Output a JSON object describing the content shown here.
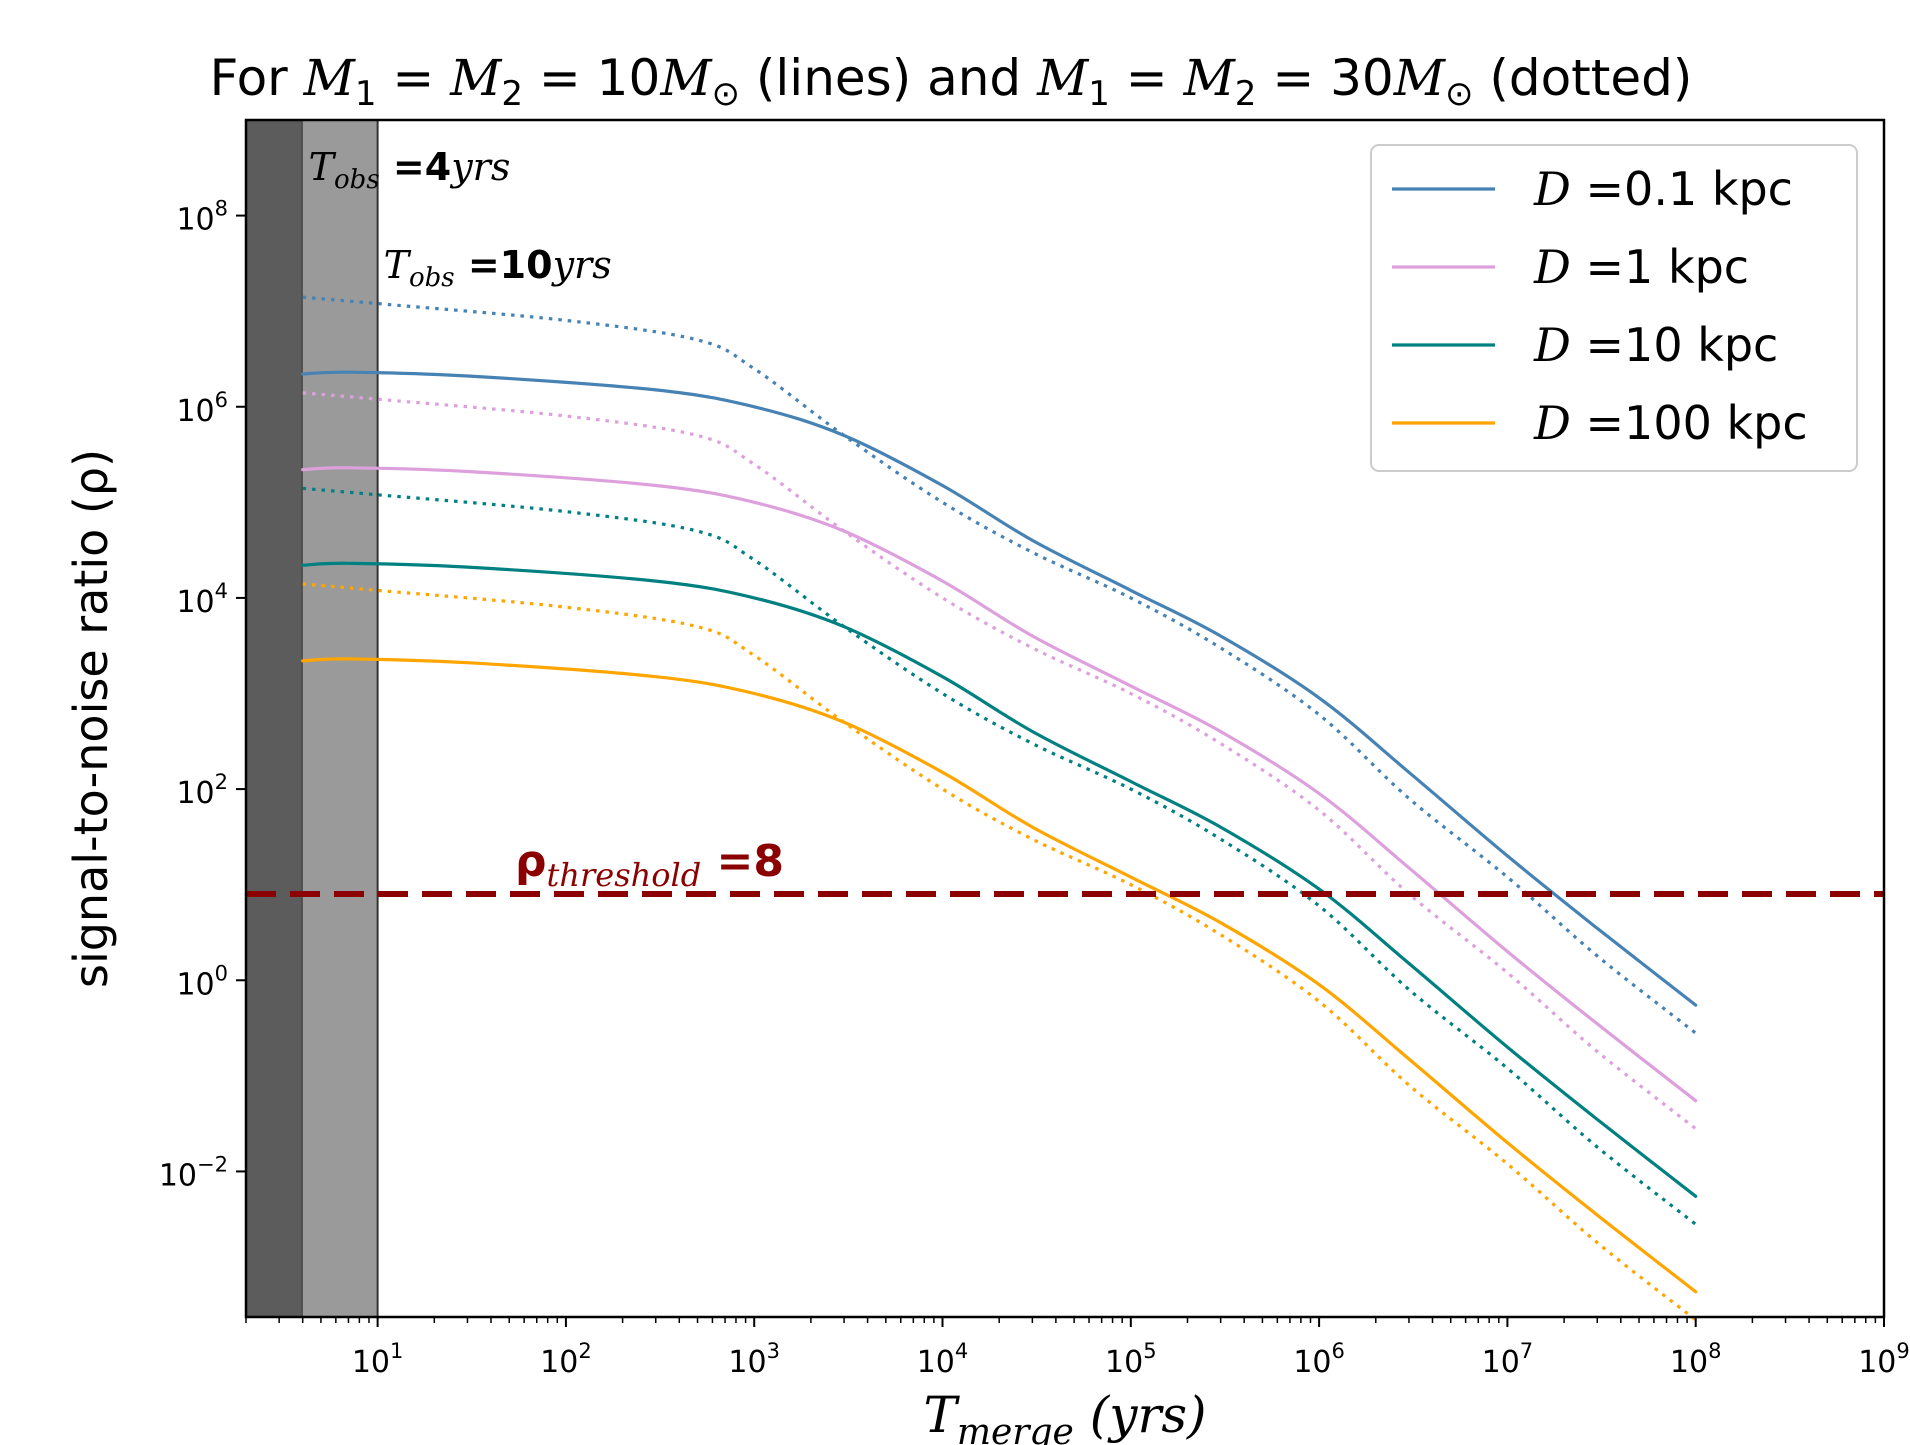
{
  "chart_data": {
    "type": "line",
    "title": {
      "pre": "For ",
      "m1": "M",
      "s1": "1",
      "eq1": " = ",
      "m2": "M",
      "s2": "2",
      "eq2": " = 10",
      "m3": "M",
      "sun1": "⊙",
      "mid": " (lines) and ",
      "m4": "M",
      "s4": "1",
      "eq3": " = ",
      "m5": "M",
      "s5": "2",
      "eq4": " = 30",
      "m6": "M",
      "sun2": "⊙",
      "post": " (dotted)"
    },
    "xlabel": {
      "main": "T",
      "sub": "merge",
      "unit": " (yrs)"
    },
    "ylabel": "signal-to-noise ratio (ρ)",
    "x_scale": "log",
    "y_scale": "log",
    "xlim": [
      2,
      1000000000
    ],
    "ylim": [
      0.0003,
      1000000000
    ],
    "x_ticks": [
      {
        "value": 10,
        "base": "10",
        "exp": "1"
      },
      {
        "value": 100,
        "base": "10",
        "exp": "2"
      },
      {
        "value": 1000,
        "base": "10",
        "exp": "3"
      },
      {
        "value": 10000,
        "base": "10",
        "exp": "4"
      },
      {
        "value": 100000,
        "base": "10",
        "exp": "5"
      },
      {
        "value": 1000000,
        "base": "10",
        "exp": "6"
      },
      {
        "value": 10000000,
        "base": "10",
        "exp": "7"
      },
      {
        "value": 100000000,
        "base": "10",
        "exp": "8"
      },
      {
        "value": 1000000000,
        "base": "10",
        "exp": "9"
      }
    ],
    "y_ticks": [
      {
        "value": 0.01,
        "base": "10",
        "exp": "−2"
      },
      {
        "value": 1,
        "base": "10",
        "exp": "0"
      },
      {
        "value": 100,
        "base": "10",
        "exp": "2"
      },
      {
        "value": 10000,
        "base": "10",
        "exp": "4"
      },
      {
        "value": 1000000,
        "base": "10",
        "exp": "6"
      },
      {
        "value": 100000000,
        "base": "10",
        "exp": "8"
      }
    ],
    "grid": false,
    "shaded_regions": [
      {
        "x0": 2,
        "x1": 4,
        "color": "#5c5c5c",
        "label_main": "T",
        "label_sub": "obs",
        "label_eq": " =4",
        "label_unit": "yrs"
      },
      {
        "x0": 4,
        "x1": 10,
        "color": "#9a9a9a",
        "label_main": "T",
        "label_sub": "obs",
        "label_eq": " =10",
        "label_unit": "yrs"
      }
    ],
    "threshold": {
      "value": 8,
      "color": "#8b0000",
      "label_main": "ρ",
      "label_sub": "threshold",
      "label_eq": " =8"
    },
    "legend": {
      "placement": "top-right",
      "entries": [
        {
          "var": "D",
          "text": " =0.1 kpc",
          "color": "#4682b4"
        },
        {
          "var": "D",
          "text": " =1 kpc",
          "color": "#dda0dd"
        },
        {
          "var": "D",
          "text": " =10 kpc",
          "color": "#008080"
        },
        {
          "var": "D",
          "text": " =100 kpc",
          "color": "#ffa500"
        }
      ]
    },
    "series": [
      {
        "name": "D =0.1 kpc",
        "style": "solid",
        "color": "#4682b4",
        "points": [
          [
            4,
            2200000
          ],
          [
            7,
            2300000
          ],
          [
            30,
            2100000
          ],
          [
            300,
            1500000
          ],
          [
            1000,
            1000000
          ],
          [
            3000,
            500000
          ],
          [
            10000,
            150000
          ],
          [
            30000,
            40000
          ],
          [
            100000,
            12000
          ],
          [
            300000,
            4000
          ],
          [
            1000000,
            900
          ],
          [
            3000000,
            150
          ],
          [
            10000000,
            20
          ],
          [
            30000000,
            3.5
          ],
          [
            100000000,
            0.55
          ]
        ]
      },
      {
        "name": "D =1 kpc",
        "style": "solid",
        "color": "#dda0dd",
        "points": [
          [
            4,
            220000
          ],
          [
            7,
            230000
          ],
          [
            30,
            210000
          ],
          [
            300,
            150000
          ],
          [
            1000,
            100000
          ],
          [
            3000,
            50000
          ],
          [
            10000,
            15000
          ],
          [
            30000,
            4000
          ],
          [
            100000,
            1200
          ],
          [
            300000,
            400
          ],
          [
            1000000,
            90
          ],
          [
            3000000,
            15
          ],
          [
            10000000,
            2
          ],
          [
            30000000,
            0.35
          ],
          [
            100000000,
            0.055
          ]
        ]
      },
      {
        "name": "D =10 kpc",
        "style": "solid",
        "color": "#008080",
        "points": [
          [
            4,
            22000
          ],
          [
            7,
            23000
          ],
          [
            30,
            21000
          ],
          [
            300,
            15000
          ],
          [
            1000,
            10000
          ],
          [
            3000,
            5000
          ],
          [
            10000,
            1500
          ],
          [
            30000,
            400
          ],
          [
            100000,
            120
          ],
          [
            300000,
            40
          ],
          [
            1000000,
            9
          ],
          [
            3000000,
            1.5
          ],
          [
            10000000,
            0.2
          ],
          [
            30000000,
            0.035
          ],
          [
            100000000,
            0.0055
          ]
        ]
      },
      {
        "name": "D =100 kpc",
        "style": "solid",
        "color": "#ffa500",
        "points": [
          [
            4,
            2200
          ],
          [
            7,
            2300
          ],
          [
            30,
            2100
          ],
          [
            300,
            1500
          ],
          [
            1000,
            1000
          ],
          [
            3000,
            500
          ],
          [
            10000,
            150
          ],
          [
            30000,
            40
          ],
          [
            100000,
            12
          ],
          [
            300000,
            4
          ],
          [
            1000000,
            0.9
          ],
          [
            3000000,
            0.15
          ],
          [
            10000000,
            0.02
          ],
          [
            30000000,
            0.0035
          ],
          [
            100000000,
            0.00055
          ]
        ]
      },
      {
        "name": "D =0.1 kpc",
        "style": "dotted",
        "color": "#4682b4",
        "points": [
          [
            4,
            14000000
          ],
          [
            10,
            12000000
          ],
          [
            100,
            8000000
          ],
          [
            500,
            5000000
          ],
          [
            1000,
            2500000
          ],
          [
            3000,
            500000
          ],
          [
            10000,
            100000
          ],
          [
            30000,
            30000
          ],
          [
            100000,
            10000
          ],
          [
            300000,
            3000
          ],
          [
            1000000,
            600
          ],
          [
            3000000,
            80
          ],
          [
            10000000,
            12
          ],
          [
            30000000,
            1.8
          ],
          [
            100000000,
            0.28
          ]
        ]
      },
      {
        "name": "D =1 kpc",
        "style": "dotted",
        "color": "#dda0dd",
        "points": [
          [
            4,
            1400000
          ],
          [
            10,
            1200000
          ],
          [
            100,
            800000
          ],
          [
            500,
            500000
          ],
          [
            1000,
            250000
          ],
          [
            3000,
            50000
          ],
          [
            10000,
            10000
          ],
          [
            30000,
            3000
          ],
          [
            100000,
            1000
          ],
          [
            300000,
            300
          ],
          [
            1000000,
            60
          ],
          [
            3000000,
            8
          ],
          [
            10000000,
            1.2
          ],
          [
            30000000,
            0.18
          ],
          [
            100000000,
            0.028
          ]
        ]
      },
      {
        "name": "D =10 kpc",
        "style": "dotted",
        "color": "#008080",
        "points": [
          [
            4,
            140000
          ],
          [
            10,
            120000
          ],
          [
            100,
            80000
          ],
          [
            500,
            50000
          ],
          [
            1000,
            25000
          ],
          [
            3000,
            5000
          ],
          [
            10000,
            1000
          ],
          [
            30000,
            300
          ],
          [
            100000,
            100
          ],
          [
            300000,
            30
          ],
          [
            1000000,
            6
          ],
          [
            3000000,
            0.8
          ],
          [
            10000000,
            0.12
          ],
          [
            30000000,
            0.018
          ],
          [
            100000000,
            0.0028
          ]
        ]
      },
      {
        "name": "D =100 kpc",
        "style": "dotted",
        "color": "#ffa500",
        "points": [
          [
            4,
            14000
          ],
          [
            10,
            12000
          ],
          [
            100,
            8000
          ],
          [
            500,
            5000
          ],
          [
            1000,
            2500
          ],
          [
            3000,
            500
          ],
          [
            10000,
            100
          ],
          [
            30000,
            30
          ],
          [
            100000,
            10
          ],
          [
            300000,
            3
          ],
          [
            1000000,
            0.6
          ],
          [
            3000000,
            0.08
          ],
          [
            10000000,
            0.012
          ],
          [
            30000000,
            0.0018
          ],
          [
            100000000,
            0.00028
          ]
        ]
      }
    ]
  }
}
